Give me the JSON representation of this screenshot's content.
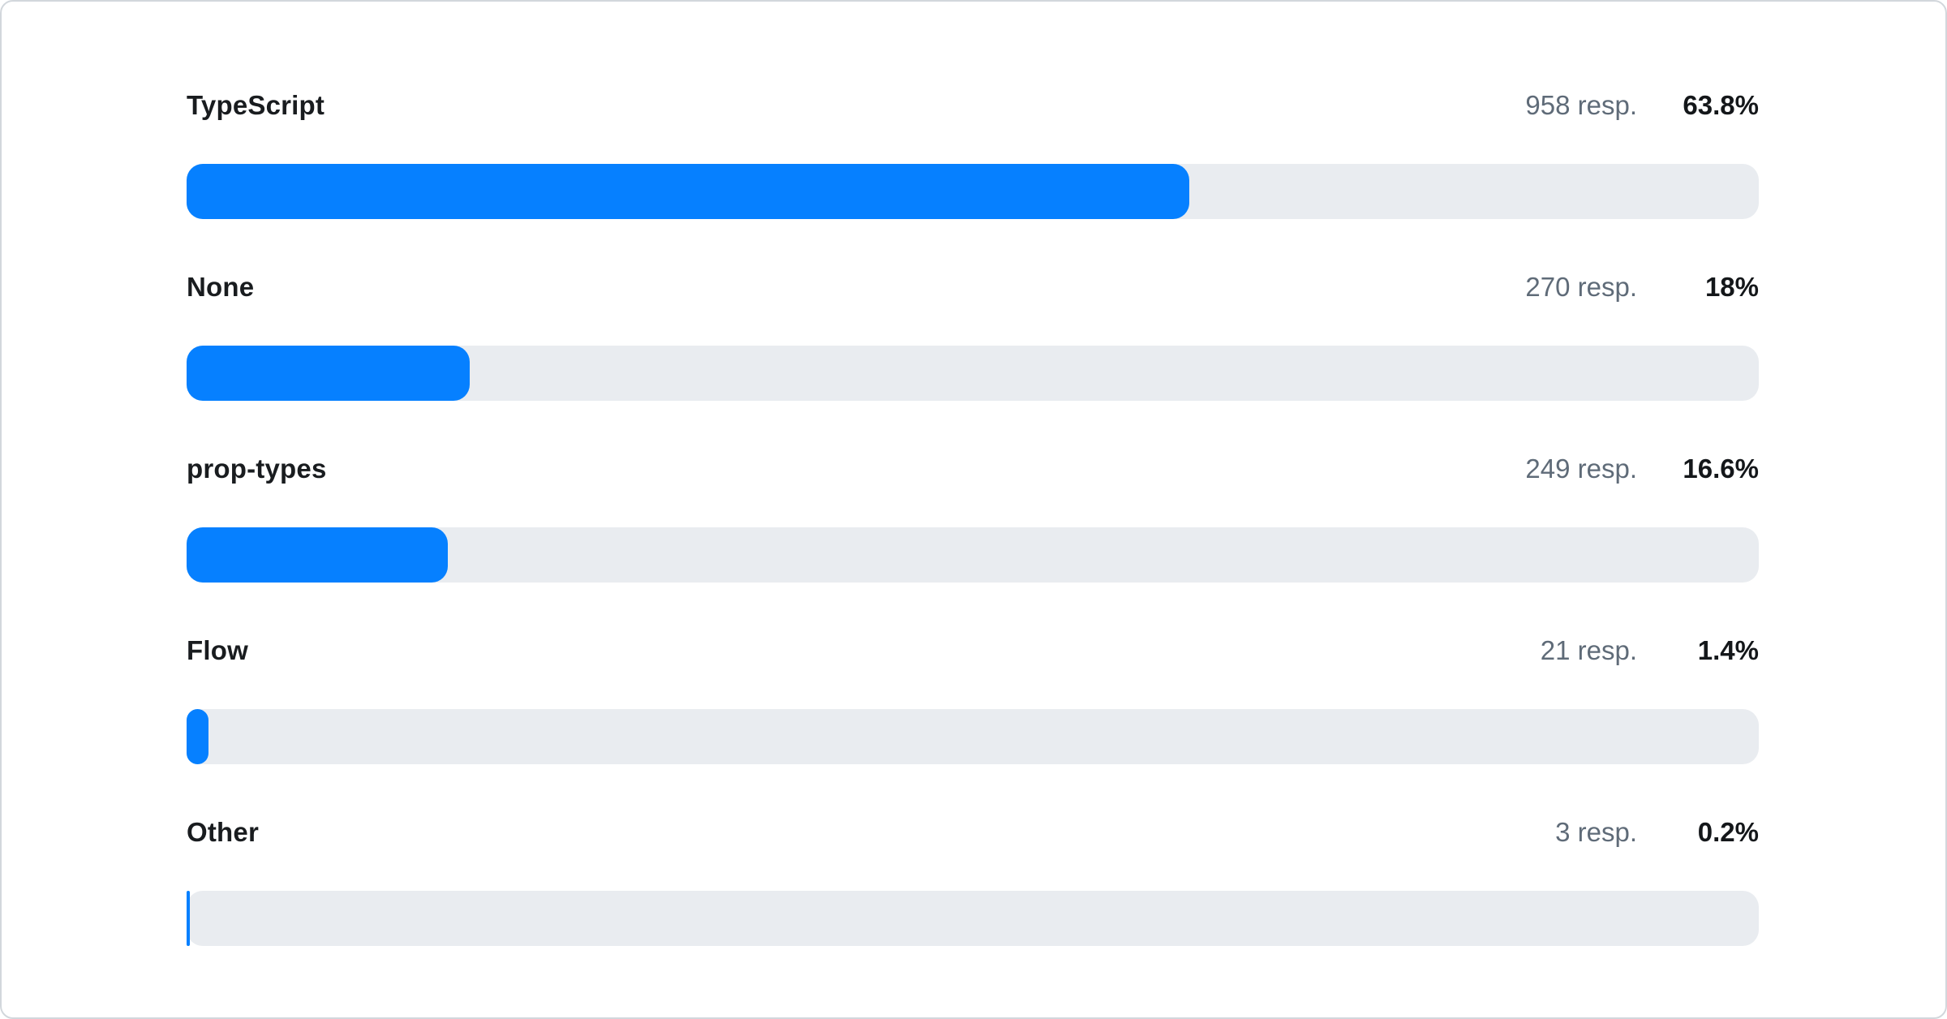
{
  "chart_data": {
    "type": "bar",
    "orientation": "horizontal",
    "title": "",
    "xlabel": "",
    "ylabel": "",
    "grid": false,
    "legend": false,
    "xlim": [
      0,
      100
    ],
    "categories": [
      "TypeScript",
      "None",
      "prop-types",
      "Flow",
      "Other"
    ],
    "series": [
      {
        "name": "responses",
        "values": [
          958,
          270,
          249,
          21,
          3
        ]
      },
      {
        "name": "percent",
        "values": [
          63.8,
          18,
          16.6,
          1.4,
          0.2
        ]
      }
    ]
  },
  "rows": [
    {
      "label": "TypeScript",
      "responses": "958 resp.",
      "percent_label": "63.8%",
      "percent": 63.8
    },
    {
      "label": "None",
      "responses": "270 resp.",
      "percent_label": "18%",
      "percent": 18
    },
    {
      "label": "prop-types",
      "responses": "249 resp.",
      "percent_label": "16.6%",
      "percent": 16.6
    },
    {
      "label": "Flow",
      "responses": "21 resp.",
      "percent_label": "1.4%",
      "percent": 1.4
    },
    {
      "label": "Other",
      "responses": "3 resp.",
      "percent_label": "0.2%",
      "percent": 0.2
    }
  ],
  "colors": {
    "bar_fill": "#0680ff",
    "bar_track": "#e9ecf0",
    "label_text": "#191c1f",
    "muted_text": "#5f6b78",
    "percent_text": "#14171a",
    "card_border": "#d2d7dc",
    "card_bg": "#ffffff"
  }
}
